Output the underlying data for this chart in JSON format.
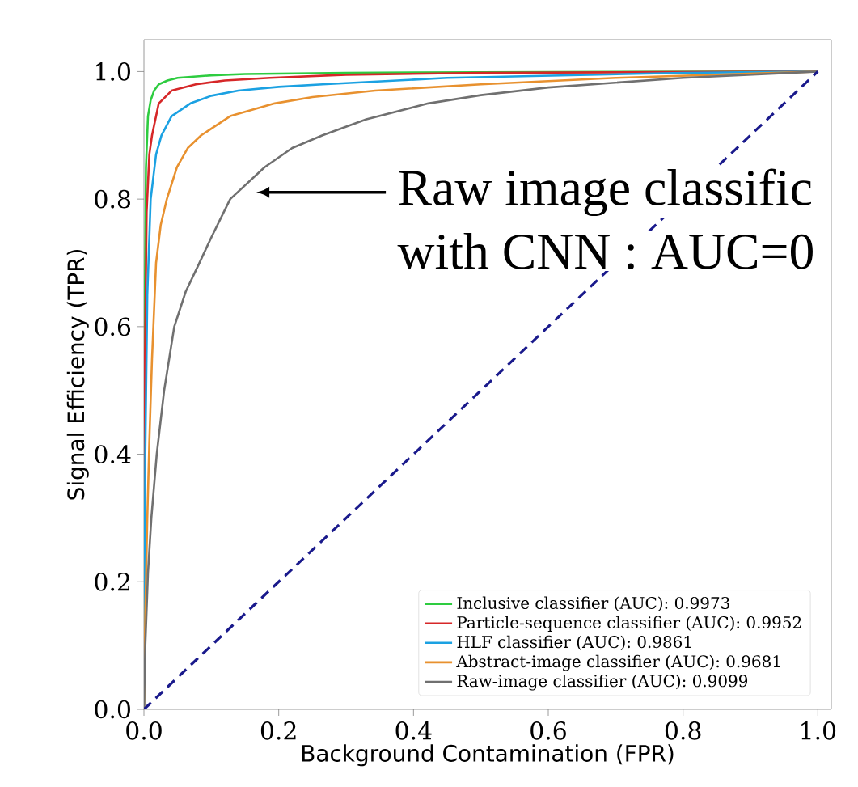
{
  "chart_data": {
    "type": "line",
    "xlabel": "Background Contamination (FPR)",
    "ylabel": "Signal Efficiency (TPR)",
    "xlim": [
      0,
      1.02
    ],
    "ylim": [
      0,
      1.05
    ],
    "xticks": [
      {
        "value": 0,
        "label": "0.0"
      },
      0.2,
      0.4,
      0.6,
      0.8,
      {
        "value": 1,
        "label": "1.0"
      }
    ],
    "yticks": [
      {
        "value": 0,
        "label": "0.0"
      },
      0.2,
      0.4,
      0.6,
      0.8,
      {
        "value": 1,
        "label": "1.0"
      }
    ],
    "legend": "bottom right",
    "grid": false,
    "marker": "none",
    "annotations": [
      "Raw image classific",
      "with CNN : AUC=0"
    ],
    "series": [
      {
        "name": "Inclusive classifier (AUC): 0.9973",
        "color": "#2ecc40",
        "x": [
          0,
          0.001,
          0.003,
          0.006,
          0.01,
          0.015,
          0.022,
          0.035,
          0.05,
          0.1,
          0.15,
          0.3,
          0.5,
          1
        ],
        "values": [
          0,
          0.6,
          0.85,
          0.93,
          0.955,
          0.97,
          0.98,
          0.986,
          0.99,
          0.994,
          0.996,
          0.998,
          0.999,
          1
        ]
      },
      {
        "name": "Particle-sequence classifier (AUC): 0.9952",
        "color": "#d62728",
        "x": [
          0,
          0.001,
          0.004,
          0.008,
          0.012,
          0.022,
          0.041,
          0.077,
          0.12,
          0.187,
          0.3,
          0.5,
          1
        ],
        "values": [
          0,
          0.5,
          0.78,
          0.87,
          0.9,
          0.95,
          0.97,
          0.98,
          0.986,
          0.99,
          0.995,
          0.998,
          1
        ]
      },
      {
        "name": "HLF classifier (AUC): 0.9861",
        "color": "#1ba1e2",
        "x": [
          0,
          0.002,
          0.005,
          0.01,
          0.018,
          0.026,
          0.041,
          0.069,
          0.1,
          0.14,
          0.2,
          0.265,
          0.45,
          0.8,
          1
        ],
        "values": [
          0,
          0.4,
          0.65,
          0.8,
          0.87,
          0.9,
          0.93,
          0.95,
          0.962,
          0.97,
          0.976,
          0.98,
          0.99,
          0.998,
          1
        ]
      },
      {
        "name": "Abstract-image classifier (AUC): 0.9681",
        "color": "#e8912f",
        "x": [
          0,
          0.002,
          0.005,
          0.008,
          0.012,
          0.018,
          0.025,
          0.034,
          0.049,
          0.065,
          0.085,
          0.128,
          0.194,
          0.25,
          0.343,
          0.5,
          0.7,
          1
        ],
        "values": [
          0,
          0.15,
          0.3,
          0.42,
          0.55,
          0.7,
          0.76,
          0.8,
          0.85,
          0.88,
          0.9,
          0.93,
          0.95,
          0.96,
          0.97,
          0.98,
          0.99,
          1
        ]
      },
      {
        "name": "Raw-image classifier (AUC): 0.9099",
        "color": "#707070",
        "x": [
          0,
          0.002,
          0.006,
          0.011,
          0.019,
          0.03,
          0.045,
          0.062,
          0.081,
          0.1,
          0.128,
          0.179,
          0.22,
          0.265,
          0.33,
          0.422,
          0.5,
          0.6,
          0.8,
          1
        ],
        "values": [
          0,
          0.1,
          0.214,
          0.3,
          0.4,
          0.5,
          0.6,
          0.655,
          0.697,
          0.74,
          0.8,
          0.85,
          0.88,
          0.9,
          0.925,
          0.95,
          0.963,
          0.975,
          0.99,
          1
        ]
      },
      {
        "color": "#1a1a8c",
        "line_style": "dashed",
        "x": [
          0,
          1
        ],
        "values": [
          0,
          1
        ]
      }
    ]
  }
}
